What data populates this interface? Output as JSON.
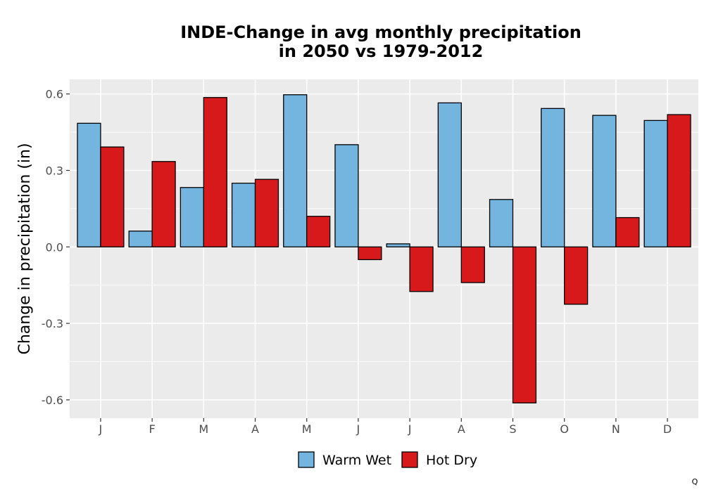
{
  "chart_data": {
    "type": "bar",
    "title_lines": [
      "INDE-Change in avg monthly precipitation",
      "in 2050 vs 1979-2012"
    ],
    "ylabel": "Change in precipitation (in)",
    "xlabel": "",
    "categories": [
      "J",
      "F",
      "M",
      "A",
      "M",
      "J",
      "J",
      "A",
      "S",
      "O",
      "N",
      "D"
    ],
    "series": [
      {
        "name": "Warm Wet",
        "color": "#74b5e0",
        "values": [
          0.485,
          0.062,
          0.233,
          0.25,
          0.597,
          0.401,
          0.012,
          0.565,
          0.186,
          0.543,
          0.516,
          0.496
        ]
      },
      {
        "name": "Hot Dry",
        "color": "#d7191c",
        "values": [
          0.392,
          0.335,
          0.586,
          0.265,
          0.12,
          -0.05,
          -0.175,
          -0.14,
          -0.612,
          -0.225,
          0.115,
          0.519
        ]
      }
    ],
    "ylim": [
      -0.672,
      0.657
    ],
    "yticks": [
      -0.6,
      -0.3,
      0.0,
      0.3,
      0.6
    ],
    "ytick_labels": [
      "-0.6",
      "-0.3",
      "0.0",
      "0.3",
      "0.6"
    ],
    "grid": true,
    "panel_background": "#ebebeb",
    "legend_position": "bottom"
  },
  "corner_mark": "Q"
}
